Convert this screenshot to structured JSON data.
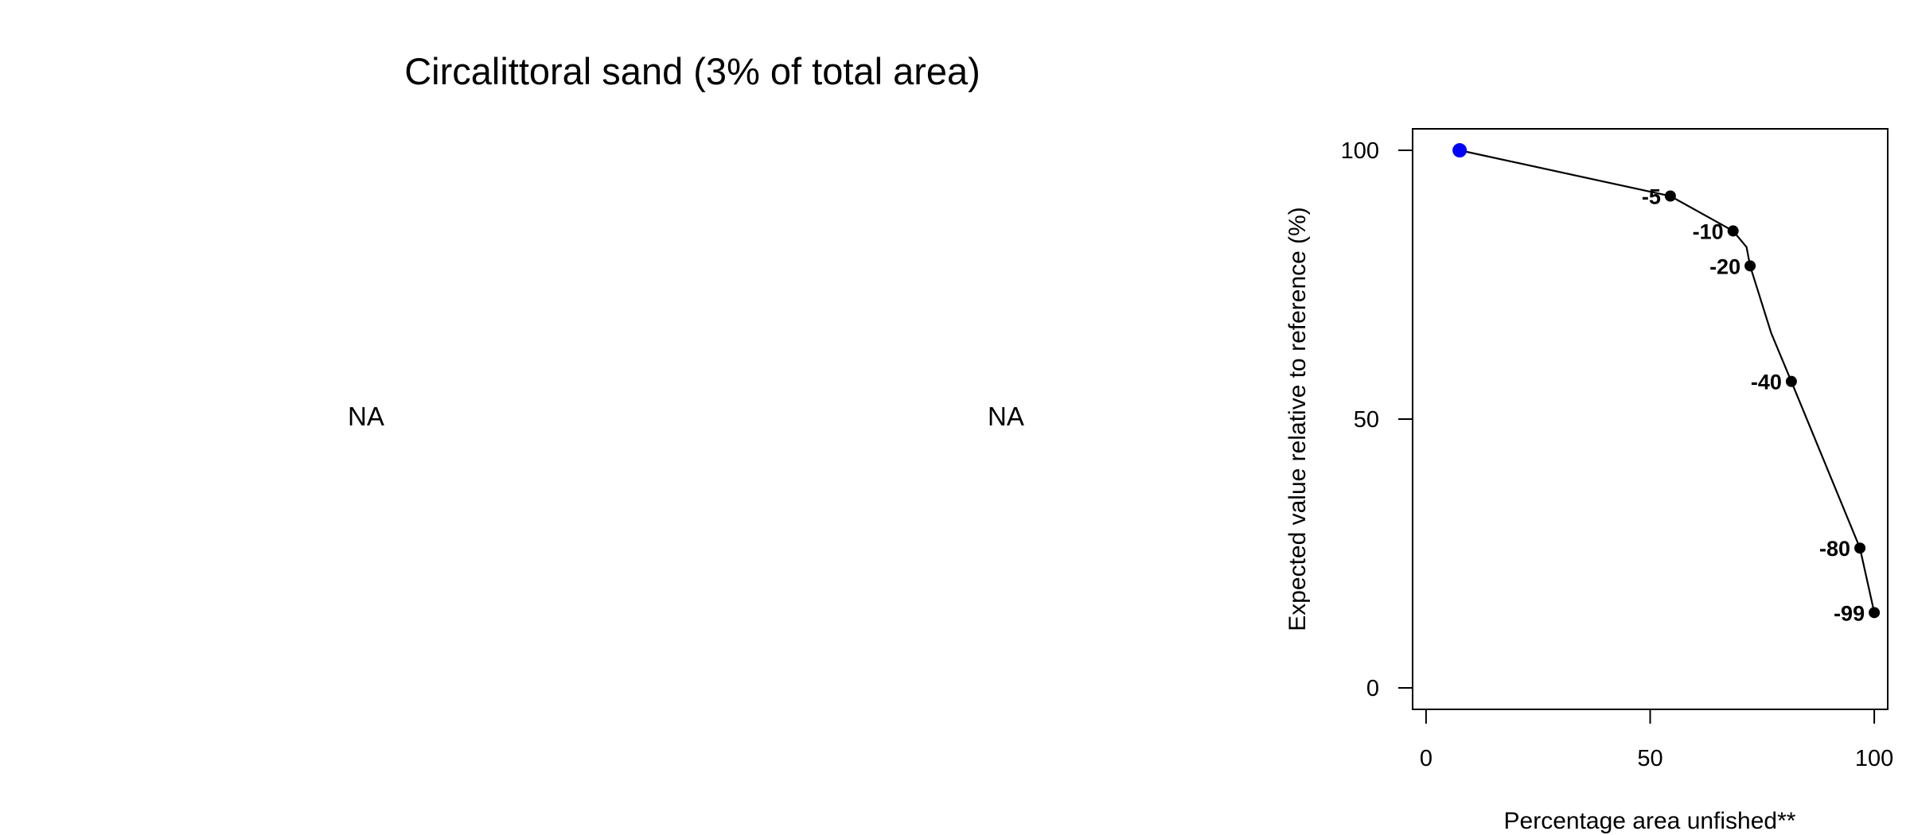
{
  "title": "Circalittoral sand (3% of total area)",
  "panels": [
    {
      "text": "NA"
    },
    {
      "text": "NA"
    }
  ],
  "chart_data": {
    "type": "line",
    "xlabel": "Percentage area unfished**",
    "ylabel": "Expected value relative to reference (%)",
    "xlim": [
      -3,
      103
    ],
    "ylim": [
      -4,
      104
    ],
    "xticks": [
      0,
      50,
      100
    ],
    "yticks": [
      0,
      50,
      100
    ],
    "grid": false,
    "curve": [
      {
        "x": 7.5,
        "y": 100
      },
      {
        "x": 54.5,
        "y": 91.5
      },
      {
        "x": 68.5,
        "y": 85
      },
      {
        "x": 71.5,
        "y": 82
      },
      {
        "x": 72.3,
        "y": 78.5
      },
      {
        "x": 77,
        "y": 66
      },
      {
        "x": 81.5,
        "y": 57
      },
      {
        "x": 96.8,
        "y": 26
      },
      {
        "x": 100,
        "y": 14
      }
    ],
    "reference_point": {
      "x": 7.5,
      "y": 100,
      "color": "#0000ff"
    },
    "points": [
      {
        "label": "-5",
        "x": 54.5,
        "y": 91.5
      },
      {
        "label": "-10",
        "x": 68.5,
        "y": 85
      },
      {
        "label": "-20",
        "x": 72.3,
        "y": 78.5
      },
      {
        "label": "-40",
        "x": 81.5,
        "y": 57
      },
      {
        "label": "-80",
        "x": 96.8,
        "y": 26
      },
      {
        "label": "-99",
        "x": 100,
        "y": 14
      }
    ],
    "colors": {
      "line": "#000000",
      "points": "#000000",
      "reference": "#0000ff"
    }
  }
}
